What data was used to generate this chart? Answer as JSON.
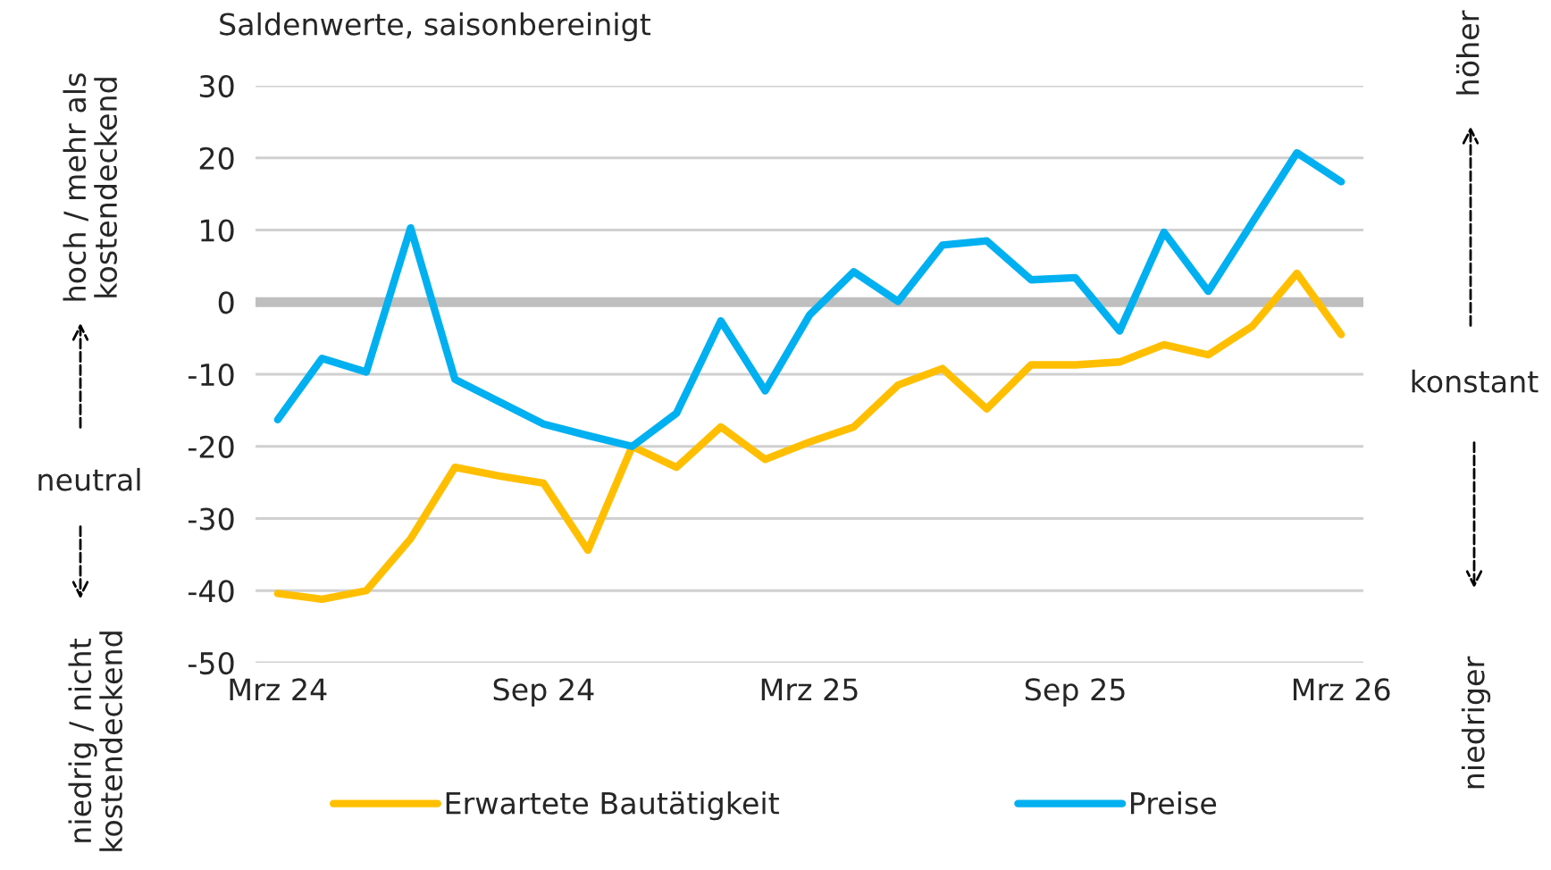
{
  "chart_data": {
    "type": "line",
    "subtitle": "Saldenwerte, saisonbereinigt",
    "categories": [
      "Mrz 24",
      null,
      null,
      null,
      null,
      null,
      "Sep 24",
      null,
      null,
      null,
      null,
      null,
      "Mrz 25",
      null,
      null,
      null,
      null,
      null,
      "Sep 25",
      null,
      null,
      null,
      null,
      null,
      "Mrz 26"
    ],
    "series": [
      {
        "name": "Erwartete Bautätigkeit",
        "color": "#ffbf00",
        "values": [
          -40.4,
          -41.2,
          -40.0,
          -32.8,
          -22.9,
          -24.1,
          -25.1,
          -34.4,
          -20.0,
          -22.9,
          -17.3,
          -21.8,
          -19.4,
          -17.3,
          -11.5,
          -9.2,
          -14.8,
          -8.7,
          -8.7,
          -8.3,
          -5.9,
          -7.3,
          -3.3,
          4.0,
          -4.5
        ]
      },
      {
        "name": "Preise",
        "color": "#00b0f0",
        "values": [
          -16.3,
          -7.8,
          -9.7,
          10.3,
          -10.7,
          -13.8,
          -16.9,
          -18.5,
          -20.0,
          -15.4,
          -2.6,
          -12.3,
          -1.8,
          4.2,
          0.1,
          7.9,
          8.5,
          3.1,
          3.4,
          -4.0,
          9.7,
          1.5,
          11.1,
          20.7,
          16.7
        ]
      }
    ],
    "ylim": [
      -50,
      30
    ],
    "yticks": [
      -50,
      -40,
      -30,
      -20,
      -10,
      0,
      10,
      20,
      30
    ],
    "ref_lines": [
      {
        "axis": "y",
        "value": 0,
        "label": null,
        "color": "#bfbfbf"
      }
    ],
    "grid": "y",
    "legend": "bottom",
    "marker": "none",
    "line_style": "solid",
    "annotations": [
      "hoch / mehr als\nkostendeckend",
      "neutral",
      "niedrig / nicht\nkostendeckend",
      "höher",
      "konstant",
      "niedriger"
    ]
  }
}
